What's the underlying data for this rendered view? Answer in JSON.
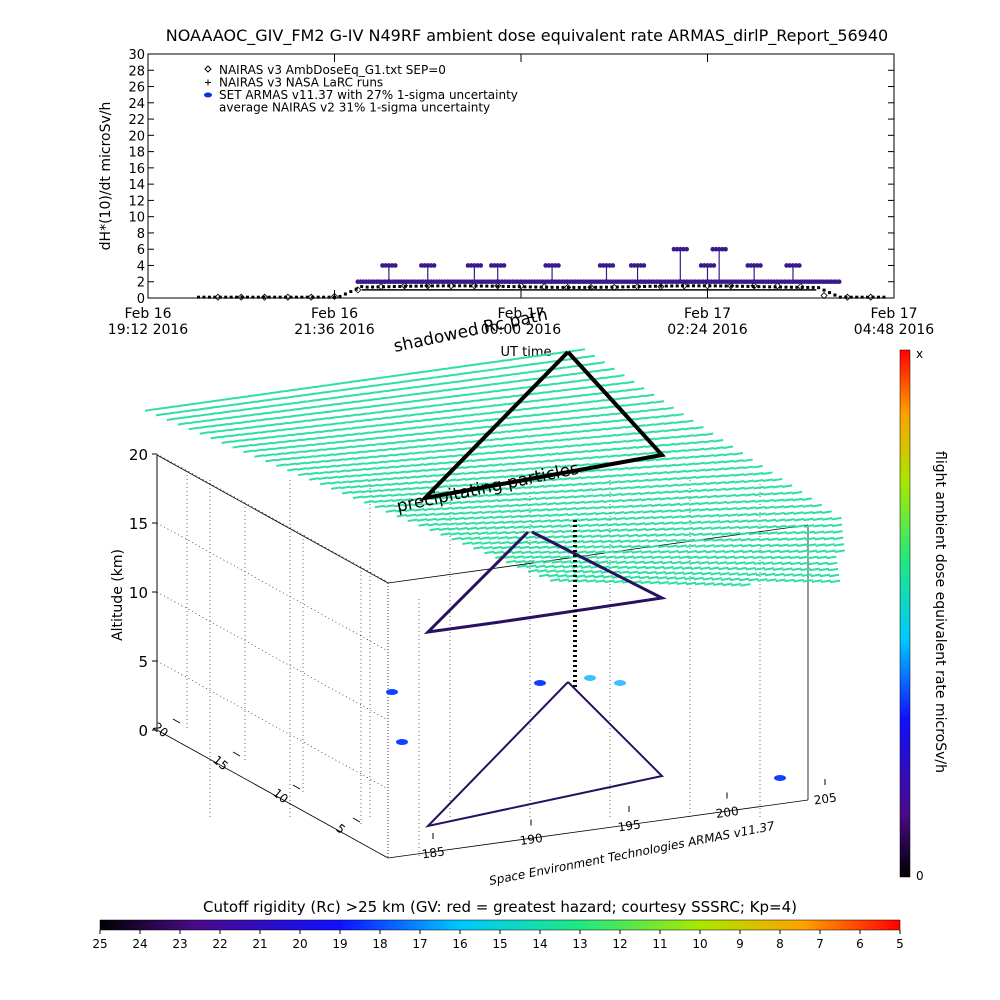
{
  "title": "NOAAAOC_GIV_FM2 G-IV    N49RF   ambient dose equivalent rate ARMAS_dirlP_Report_56940",
  "chart_data": [
    {
      "type": "scatter",
      "ylabel": "dH*(10)/dt microSv/h",
      "ylim": [
        0,
        30
      ],
      "yticks": [
        "0",
        "2",
        "4",
        "6",
        "8",
        "10",
        "12",
        "14",
        "16",
        "18",
        "20",
        "22",
        "24",
        "26",
        "28",
        "30"
      ],
      "xlim_hours": [
        0,
        9.6
      ],
      "xticks": [
        {
          "line1": "Feb 16",
          "line2": "19:12 2016"
        },
        {
          "line1": "Feb 16",
          "line2": "21:36 2016"
        },
        {
          "line1": "Feb 17",
          "line2": "00:00 2016"
        },
        {
          "line1": "Feb 17",
          "line2": "02:24 2016"
        },
        {
          "line1": "Feb 17",
          "line2": "04:48 2016"
        }
      ],
      "xlabel": "UT time",
      "legend": [
        {
          "marker": "diamond",
          "label": "NAIRAS v3 AmbDoseEq_G1.txt SEP=0",
          "color": "#000000"
        },
        {
          "marker": "plus",
          "label": "NAIRAS v3 NASA LaRC runs",
          "color": "#000000"
        },
        {
          "marker": "dot",
          "label": "SET ARMAS v11.37 with 27% 1-sigma uncertainty",
          "color": "#1030d0"
        },
        {
          "marker": "none",
          "label": "average NAIRAS v2 31% 1-sigma uncertainty",
          "color": "#000000"
        }
      ],
      "legend_position": "top-left",
      "series": [
        {
          "name": "NAIRAS v3 AmbDoseEq_G1.txt SEP=0",
          "x": [
            0.9,
            1.2,
            1.5,
            1.8,
            2.1,
            2.4,
            2.7,
            3.0,
            3.3,
            3.6,
            3.9,
            4.2,
            4.5,
            4.8,
            5.1,
            5.4,
            5.7,
            6.0,
            6.3,
            6.6,
            6.9,
            7.2,
            7.5,
            7.8,
            8.1,
            8.4,
            8.7,
            9.0,
            9.3
          ],
          "y": [
            0.1,
            0.1,
            0.1,
            0.1,
            0.1,
            0.2,
            1.0,
            1.4,
            1.5,
            1.5,
            1.5,
            1.5,
            1.5,
            1.5,
            1.4,
            1.3,
            1.3,
            1.3,
            1.4,
            1.4,
            1.5,
            1.5,
            1.5,
            1.5,
            1.5,
            1.4,
            0.3,
            0.1,
            0.1
          ]
        },
        {
          "name": "ARMAS v11.37",
          "x": [
            2.7,
            2.8,
            3.1,
            3.3,
            3.6,
            3.9,
            4.2,
            4.5,
            4.9,
            5.2,
            5.5,
            5.9,
            6.1,
            6.3,
            6.6,
            6.85,
            7.0,
            7.2,
            7.35,
            7.5,
            7.8,
            8.1,
            8.3,
            8.6,
            8.8
          ],
          "y": [
            2,
            2,
            4,
            2,
            4,
            2,
            4,
            4,
            2,
            4,
            2,
            4,
            2,
            4,
            2,
            6,
            2,
            4,
            6,
            2,
            4,
            2,
            4,
            2,
            2
          ]
        }
      ]
    },
    {
      "type": "scatter",
      "title": "",
      "zlabel": "Altitude (km)",
      "zticks": [
        "0",
        "5",
        "10",
        "15",
        "20"
      ],
      "lon_ticks": [
        "185",
        "190",
        "195",
        "200",
        "205"
      ],
      "lat_ticks": [
        "5",
        "10",
        "15",
        "20"
      ],
      "annotations": [
        "shadowed Rc path",
        "precipitating particles",
        "Space Environment Technologies ARMAS v11.37"
      ],
      "colorbar_label": "flight ambient dose equivalent rate microSv/h",
      "colorbar_top": "x",
      "colorbar_bottom": "0",
      "rigidity_label": "Cutoff rigidity (Rc) >25 km (GV: red = greatest hazard; courtesy SSSRC; Kp=4)",
      "rigidity_ticks": [
        "25",
        "24",
        "23",
        "22",
        "21",
        "20",
        "19",
        "18",
        "17",
        "16",
        "15",
        "14",
        "13",
        "12",
        "11",
        "10",
        "9",
        "8",
        "7",
        "6",
        "5"
      ],
      "flight_path_lon": [
        193.5,
        187.0,
        196.5,
        193.5
      ],
      "flight_path_lat": [
        16.0,
        3.0,
        3.5,
        16.0
      ]
    }
  ],
  "colors": {
    "sep_grid": "#22e8a0",
    "armas_dots": "#3a1a8a",
    "path": "#000000"
  }
}
